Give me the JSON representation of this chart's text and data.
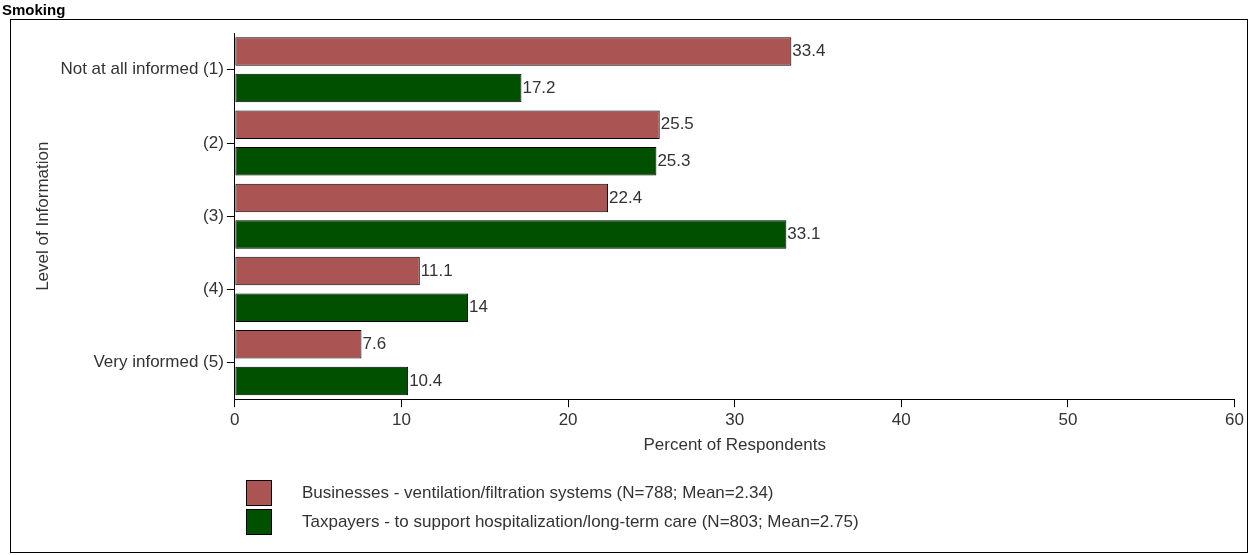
{
  "chart_data": {
    "type": "bar",
    "orientation": "horizontal",
    "title": "Smoking",
    "xlabel": "Percent of Respondents",
    "ylabel": "Level of Information",
    "categories": [
      "Not at all informed (1)",
      "(2)",
      "(3)",
      "(4)",
      "Very informed (5)"
    ],
    "series": [
      {
        "name": "Businesses - ventilation/filtration systems (N=788; Mean=2.34)",
        "color": "#ab5454",
        "values": [
          33.4,
          25.5,
          22.4,
          11.1,
          7.6
        ]
      },
      {
        "name": "Taxpayers - to support hospitalization/long-term care (N=803; Mean=2.75)",
        "color": "#005000",
        "values": [
          17.2,
          25.3,
          33.1,
          14,
          10.4
        ]
      }
    ],
    "xlim": [
      0,
      60
    ],
    "xticks": [
      0,
      10,
      20,
      30,
      40,
      50,
      60
    ],
    "grid": false,
    "legend": "bottom",
    "data_labels": true
  }
}
